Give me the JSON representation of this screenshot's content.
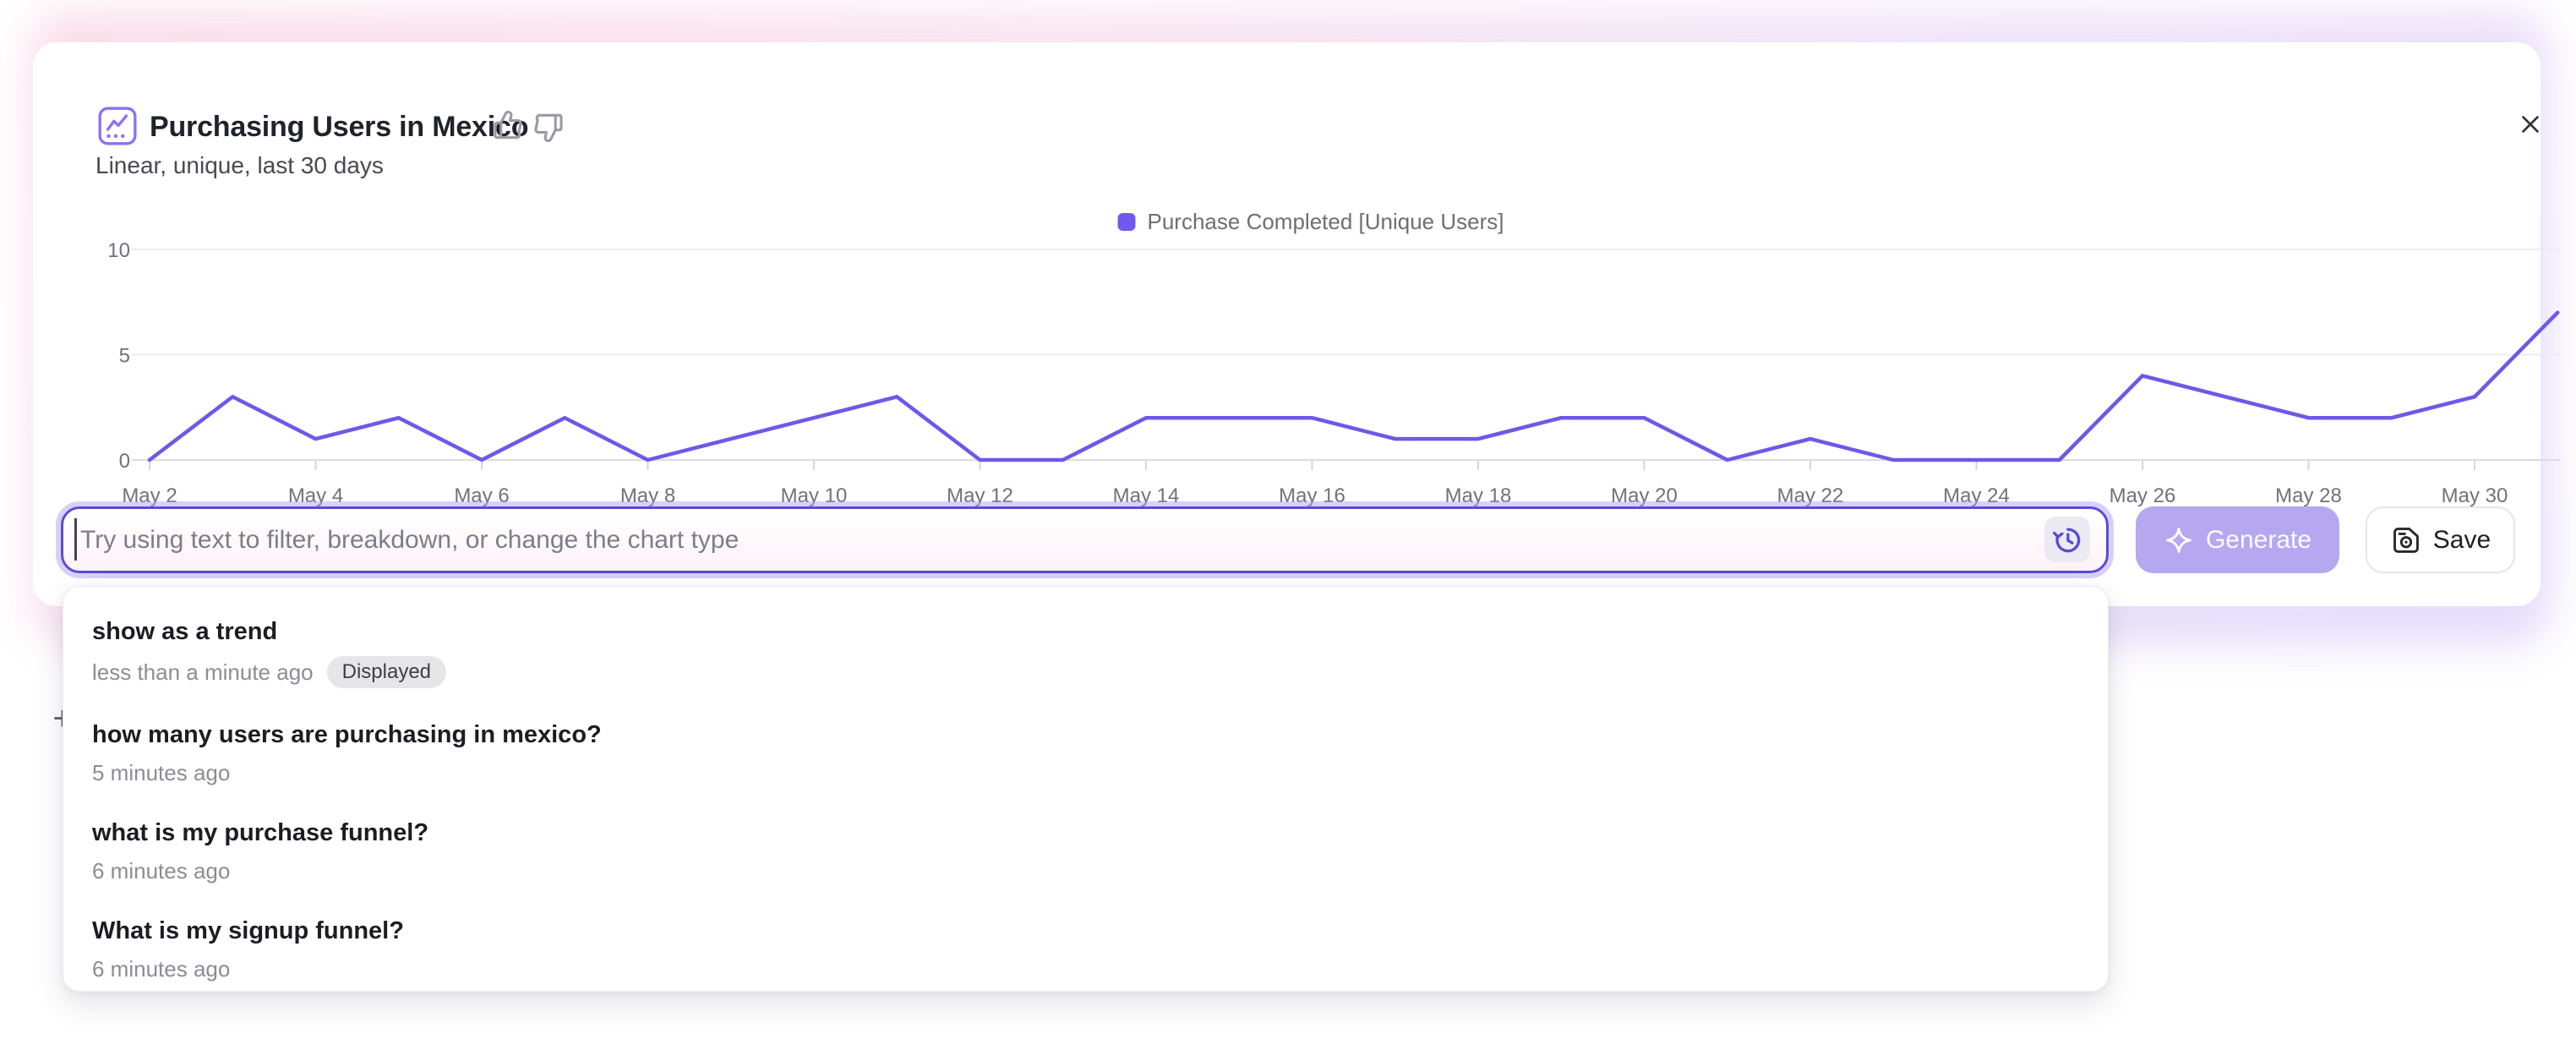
{
  "header": {
    "title": "Purchasing Users in Mexico",
    "subtitle": "Linear, unique, last 30 days",
    "icons": {
      "title": "line-chart-icon",
      "feedback_positive": "thumbs-up-icon",
      "feedback_negative": "thumbs-down-icon",
      "close": "close-icon"
    }
  },
  "chart_data": {
    "type": "line",
    "title": "Purchasing Users in Mexico",
    "x": [
      "May 2",
      "May 3",
      "May 4",
      "May 5",
      "May 6",
      "May 7",
      "May 8",
      "May 9",
      "May 10",
      "May 11",
      "May 12",
      "May 13",
      "May 14",
      "May 15",
      "May 16",
      "May 17",
      "May 18",
      "May 19",
      "May 20",
      "May 21",
      "May 22",
      "May 23",
      "May 24",
      "May 25",
      "May 26",
      "May 27",
      "May 28",
      "May 29",
      "May 30",
      "May 31"
    ],
    "x_tick_every": 2,
    "series": [
      {
        "name": "Purchase Completed [Unique Users]",
        "color": "#6C59E9",
        "values": [
          0,
          3,
          1,
          2,
          0,
          2,
          0,
          1,
          2,
          3,
          0,
          0,
          2,
          2,
          2,
          1,
          1,
          2,
          2,
          0,
          1,
          0,
          0,
          0,
          4,
          3,
          2,
          2,
          3,
          7
        ]
      }
    ],
    "ylim": [
      0,
      10
    ],
    "yticks": [
      0,
      5,
      10
    ],
    "xlabel": "",
    "ylabel": "",
    "grid": "horizontal",
    "legend_position": "top-center"
  },
  "prompt_bar": {
    "placeholder": "Try using text to filter, breakdown, or change the chart type",
    "value": "",
    "history_icon": "history-icon",
    "generate": {
      "label": "Generate",
      "enabled": false,
      "icon": "sparkle-icon"
    },
    "save": {
      "label": "Save",
      "icon": "save-icon"
    }
  },
  "history_dropdown": {
    "items": [
      {
        "query": "show as a trend",
        "time": "less than a minute ago",
        "badge": "Displayed"
      },
      {
        "query": "how many users are purchasing in mexico?",
        "time": "5 minutes ago",
        "badge": ""
      },
      {
        "query": "what is my purchase funnel?",
        "time": "6 minutes ago",
        "badge": ""
      },
      {
        "query": "What is my signup funnel?",
        "time": "6 minutes ago",
        "badge": ""
      }
    ]
  },
  "background_page": {
    "plus_button": "+"
  },
  "colors": {
    "accent_purple": "#7158EE",
    "chart_line": "#6C59E9",
    "input_focus_border": "#5B4BD5",
    "focus_ring": "rgba(167,153,243,0.45)",
    "generate_button_bg": "#B5A8F1",
    "glow_pink": "#FAD9E7",
    "glow_lavender": "#E7DCFA",
    "badge_bg": "#E6E6E9"
  }
}
